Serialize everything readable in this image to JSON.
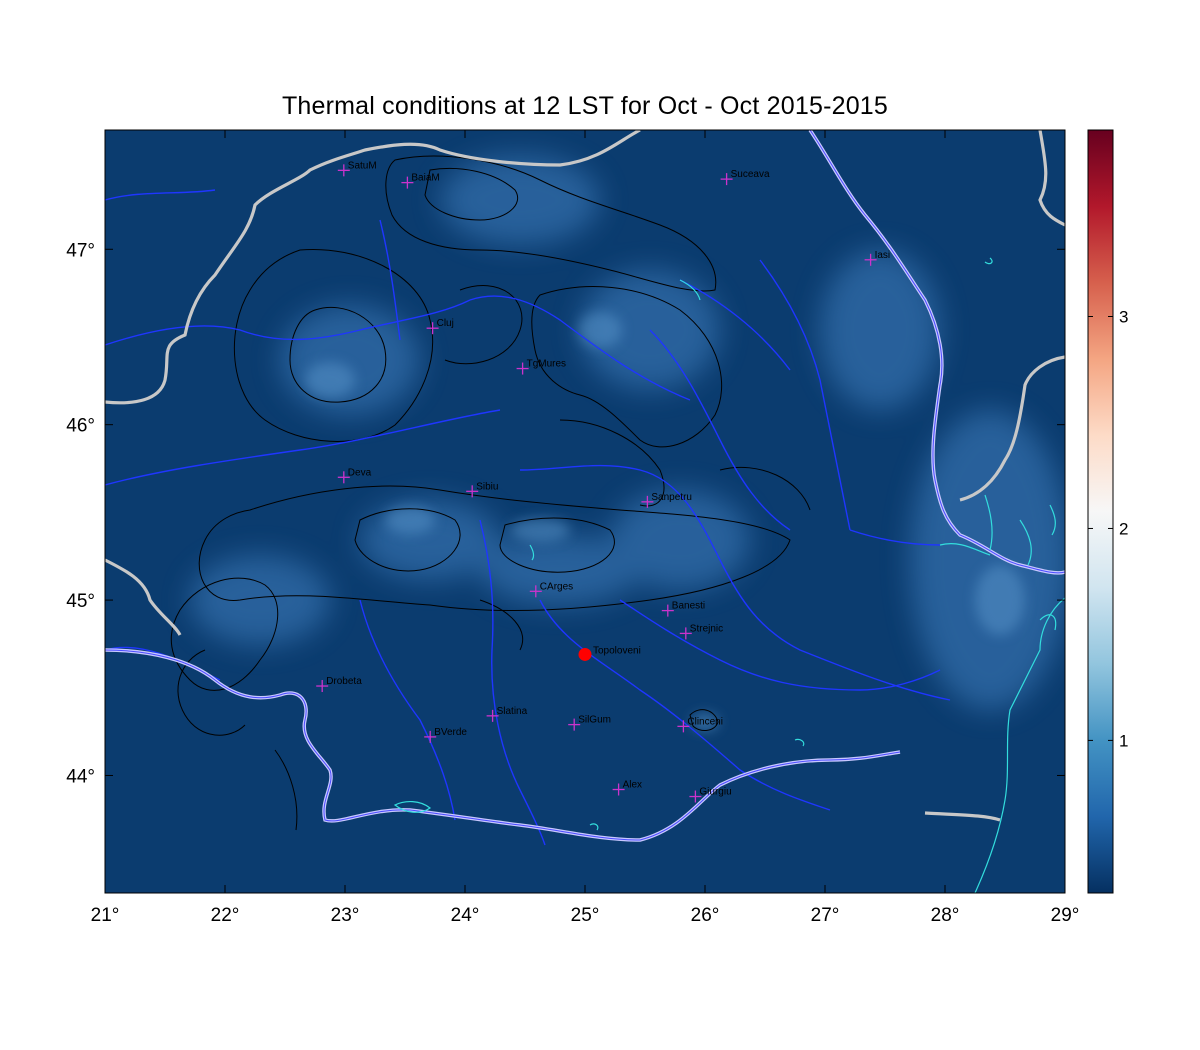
{
  "title": "Thermal conditions at 12 LST for Oct - Oct  2015-2015",
  "map": {
    "lon_range": [
      21,
      29
    ],
    "lat_range": [
      43.33,
      47.68
    ],
    "lon_ticks": [
      {
        "value": 21,
        "label": "21°"
      },
      {
        "value": 22,
        "label": "22°"
      },
      {
        "value": 23,
        "label": "23°"
      },
      {
        "value": 24,
        "label": "24°"
      },
      {
        "value": 25,
        "label": "25°"
      },
      {
        "value": 26,
        "label": "26°"
      },
      {
        "value": 27,
        "label": "27°"
      },
      {
        "value": 28,
        "label": "28°"
      },
      {
        "value": 29,
        "label": "29°"
      }
    ],
    "lat_ticks": [
      {
        "value": 44,
        "label": "44°"
      },
      {
        "value": 45,
        "label": "45°"
      },
      {
        "value": 46,
        "label": "46°"
      },
      {
        "value": 47,
        "label": "47°"
      }
    ],
    "background_color": "#0b3c6f",
    "highlight_color": "#3f7fbf",
    "cities": [
      {
        "name": "SatuM",
        "lon": 22.99,
        "lat": 47.45
      },
      {
        "name": "BaiaM",
        "lon": 23.52,
        "lat": 47.38
      },
      {
        "name": "Suceava",
        "lon": 26.18,
        "lat": 47.4
      },
      {
        "name": "Iasi",
        "lon": 27.38,
        "lat": 46.94
      },
      {
        "name": "Cluj",
        "lon": 23.73,
        "lat": 46.55
      },
      {
        "name": "TgMures",
        "lon": 24.48,
        "lat": 46.32
      },
      {
        "name": "Deva",
        "lon": 22.99,
        "lat": 45.7
      },
      {
        "name": "Sibiu",
        "lon": 24.06,
        "lat": 45.62
      },
      {
        "name": "Sanpetru",
        "lon": 25.52,
        "lat": 45.56
      },
      {
        "name": "CArges",
        "lon": 24.59,
        "lat": 45.05
      },
      {
        "name": "Banesti",
        "lon": 25.69,
        "lat": 44.94
      },
      {
        "name": "Strejnic",
        "lon": 25.84,
        "lat": 44.81
      },
      {
        "name": "Drobeta",
        "lon": 22.81,
        "lat": 44.51
      },
      {
        "name": "Slatina",
        "lon": 24.23,
        "lat": 44.34
      },
      {
        "name": "SilGum",
        "lon": 24.91,
        "lat": 44.29
      },
      {
        "name": "Clinceni",
        "lon": 25.82,
        "lat": 44.28
      },
      {
        "name": "BVerde",
        "lon": 23.71,
        "lat": 44.22
      },
      {
        "name": "Alex",
        "lon": 25.28,
        "lat": 43.92
      },
      {
        "name": "Giurgiu",
        "lon": 25.92,
        "lat": 43.88
      }
    ],
    "marker_color": "#cc33cc",
    "highlight_station": {
      "name": "Topoloveni",
      "lon": 25.0,
      "lat": 44.69,
      "color": "#ff0000"
    }
  },
  "colorbar": {
    "min": 0.28,
    "max": 3.88,
    "ticks": [
      {
        "value": 1,
        "label": "1"
      },
      {
        "value": 2,
        "label": "2"
      },
      {
        "value": 3,
        "label": "3"
      }
    ],
    "colors": [
      "#053061",
      "#2166ac",
      "#4393c3",
      "#92c5de",
      "#d1e5f0",
      "#f7f7f7",
      "#fddbc7",
      "#f4a582",
      "#d6604d",
      "#b2182b",
      "#67001f"
    ]
  }
}
